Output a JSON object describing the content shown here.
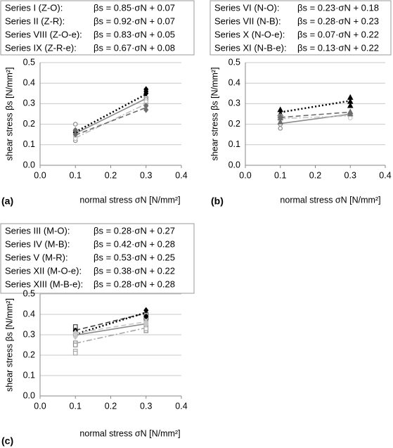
{
  "chart_data": [
    {
      "type": "scatter",
      "panel_label": "(a)",
      "xlabel": "normal stress σN [N/mm²]",
      "ylabel": "shear stress βs [N/mm²]",
      "xlim": [
        0,
        0.4
      ],
      "ylim": [
        0,
        0.5
      ],
      "grid": true,
      "xticks": [
        {
          "value": 0,
          "label": "0.0"
        },
        0.1,
        0.2,
        0.3,
        0.4
      ],
      "yticks": [
        {
          "value": 0,
          "label": "0.0"
        },
        0.1,
        0.2,
        0.3,
        0.4,
        0.5
      ],
      "series": [
        {
          "name": "Series I (Z-O):",
          "color": "#8c8c8c",
          "marker": "circle",
          "filled": false,
          "line": "solid",
          "x": [
            0.1,
            0.1,
            0.1,
            0.1,
            0.3,
            0.3,
            0.3
          ],
          "values": [
            0.2,
            0.17,
            0.16,
            0.12,
            0.33,
            0.32,
            0.3
          ],
          "fit": {
            "label": "βs = 0.85·σN + 0.07",
            "slope": 0.85,
            "intercept": 0.07
          }
        },
        {
          "name": "Series II (Z-R):",
          "color": "#000000",
          "marker": "diamond",
          "filled": true,
          "line": "dotted",
          "x": [
            0.1,
            0.1,
            0.3,
            0.3,
            0.3
          ],
          "values": [
            0.17,
            0.16,
            0.37,
            0.36,
            0.35
          ],
          "fit": {
            "label": "βs = 0.92·σN + 0.07",
            "slope": 0.92,
            "intercept": 0.07
          }
        },
        {
          "name": "Series VIII (Z-O-e):",
          "color": "#bdbdbd",
          "marker": "circle",
          "filled": false,
          "line": "dashdot",
          "x": [
            0.1,
            0.1,
            0.3,
            0.3
          ],
          "values": [
            0.14,
            0.13,
            0.31,
            0.29
          ],
          "fit": {
            "label": "βs = 0.83·σN + 0.05",
            "slope": 0.83,
            "intercept": 0.05
          }
        },
        {
          "name": "Series IX (Z-R-e):",
          "color": "#6e6e6e",
          "marker": "diamond",
          "filled": true,
          "line": "dashed",
          "x": [
            0.1,
            0.1,
            0.3,
            0.3
          ],
          "values": [
            0.17,
            0.15,
            0.29,
            0.27
          ],
          "fit": {
            "label": "βs = 0.67·σN + 0.08",
            "slope": 0.67,
            "intercept": 0.08
          }
        }
      ]
    },
    {
      "type": "scatter",
      "panel_label": "(b)",
      "xlabel": "normal stress σN [N/mm²]",
      "ylabel": "shear stress βs [N/mm²]",
      "xlim": [
        0,
        0.4
      ],
      "ylim": [
        0,
        0.5
      ],
      "grid": true,
      "xticks": [
        {
          "value": 0,
          "label": "0.0"
        },
        0.1,
        0.2,
        0.3,
        0.4
      ],
      "yticks": [
        {
          "value": 0,
          "label": "0.0"
        },
        0.1,
        0.2,
        0.3,
        0.4,
        0.5
      ],
      "series": [
        {
          "name": "Series VI  (N-O):",
          "color": "#8c8c8c",
          "marker": "circle",
          "filled": false,
          "line": "solid",
          "x": [
            0.1,
            0.1,
            0.3,
            0.3
          ],
          "values": [
            0.18,
            0.2,
            0.25,
            0.24
          ],
          "fit": {
            "label": "βs = 0.23·σN + 0.18",
            "slope": 0.23,
            "intercept": 0.18
          }
        },
        {
          "name": "Series VII (N-B):",
          "color": "#000000",
          "marker": "triangle",
          "filled": true,
          "line": "dotted",
          "x": [
            0.1,
            0.1,
            0.3,
            0.3,
            0.3
          ],
          "values": [
            0.27,
            0.25,
            0.33,
            0.31,
            0.29
          ],
          "fit": {
            "label": "βs = 0.28·σN + 0.23",
            "slope": 0.28,
            "intercept": 0.23
          }
        },
        {
          "name": "Series X  (N-O-e):",
          "color": "#c8c8c8",
          "marker": "circle",
          "filled": false,
          "line": "dashdot",
          "x": [
            0.1,
            0.1,
            0.3,
            0.3
          ],
          "values": [
            0.22,
            0.24,
            0.24,
            0.23
          ],
          "fit": {
            "label": "βs = 0.07·σN + 0.22",
            "slope": 0.07,
            "intercept": 0.22
          }
        },
        {
          "name": "Series XI (N-B-e):",
          "color": "#6e6e6e",
          "marker": "triangle",
          "filled": true,
          "line": "dashed",
          "x": [
            0.1,
            0.1,
            0.1,
            0.3,
            0.3
          ],
          "values": [
            0.21,
            0.23,
            0.24,
            0.26,
            0.25
          ],
          "fit": {
            "label": "βs = 0.13·σN + 0.22",
            "slope": 0.13,
            "intercept": 0.22
          }
        }
      ]
    },
    {
      "type": "scatter",
      "panel_label": "(c)",
      "xlabel": "normal stress σN [N/mm²]",
      "ylabel": "shear stress βs [N/mm²]",
      "xlim": [
        0,
        0.4
      ],
      "ylim": [
        0,
        0.5
      ],
      "grid": true,
      "xticks": [
        {
          "value": 0,
          "label": "0.0"
        },
        0.1,
        0.2,
        0.3,
        0.4
      ],
      "yticks": [
        {
          "value": 0,
          "label": "0.0"
        },
        0.1,
        0.2,
        0.3,
        0.4,
        0.5
      ],
      "series": [
        {
          "name": "Series III (M-O):",
          "color": "#8c8c8c",
          "marker": "square",
          "filled": false,
          "line": "solid",
          "x": [
            0.1,
            0.1,
            0.3,
            0.3
          ],
          "values": [
            0.26,
            0.25,
            0.32,
            0.34
          ],
          "fit": {
            "label": "βs = 0.28·σN + 0.27",
            "slope": 0.28,
            "intercept": 0.27
          }
        },
        {
          "name": "Series IV (M-B):",
          "color": "#444444",
          "marker": "square",
          "filled": false,
          "line": "dashed",
          "x": [
            0.1,
            0.1,
            0.3,
            0.3
          ],
          "values": [
            0.34,
            0.32,
            0.4,
            0.38
          ],
          "fit": {
            "label": "βs = 0.42·σN + 0.28",
            "slope": 0.42,
            "intercept": 0.28
          }
        },
        {
          "name": "Series V  (M-R):",
          "color": "#000000",
          "marker": "diamond",
          "filled": true,
          "line": "dotted",
          "x": [
            0.1,
            0.1,
            0.3,
            0.3
          ],
          "values": [
            0.32,
            0.3,
            0.42,
            0.39
          ],
          "fit": {
            "label": "βs = 0.53·σN + 0.25",
            "slope": 0.53,
            "intercept": 0.25
          }
        },
        {
          "name": "Series XII (M-O-e):",
          "color": "#a8a8a8",
          "marker": "square",
          "filled": false,
          "line": "dashdot",
          "x": [
            0.1,
            0.1,
            0.1,
            0.3,
            0.3
          ],
          "values": [
            0.22,
            0.21,
            0.3,
            0.36,
            0.33
          ],
          "fit": {
            "label": "βs = 0.38·σN + 0.22",
            "slope": 0.38,
            "intercept": 0.22
          }
        },
        {
          "name": "Series XIII (M-B-e):",
          "color": "#c8c8c8",
          "marker": "diamond",
          "filled": true,
          "line": "dashed",
          "x": [
            0.1,
            0.1,
            0.3,
            0.3
          ],
          "values": [
            0.29,
            0.31,
            0.36,
            0.35
          ],
          "fit": {
            "label": "βs = 0.28·σN + 0.28",
            "slope": 0.28,
            "intercept": 0.28
          }
        }
      ]
    }
  ]
}
